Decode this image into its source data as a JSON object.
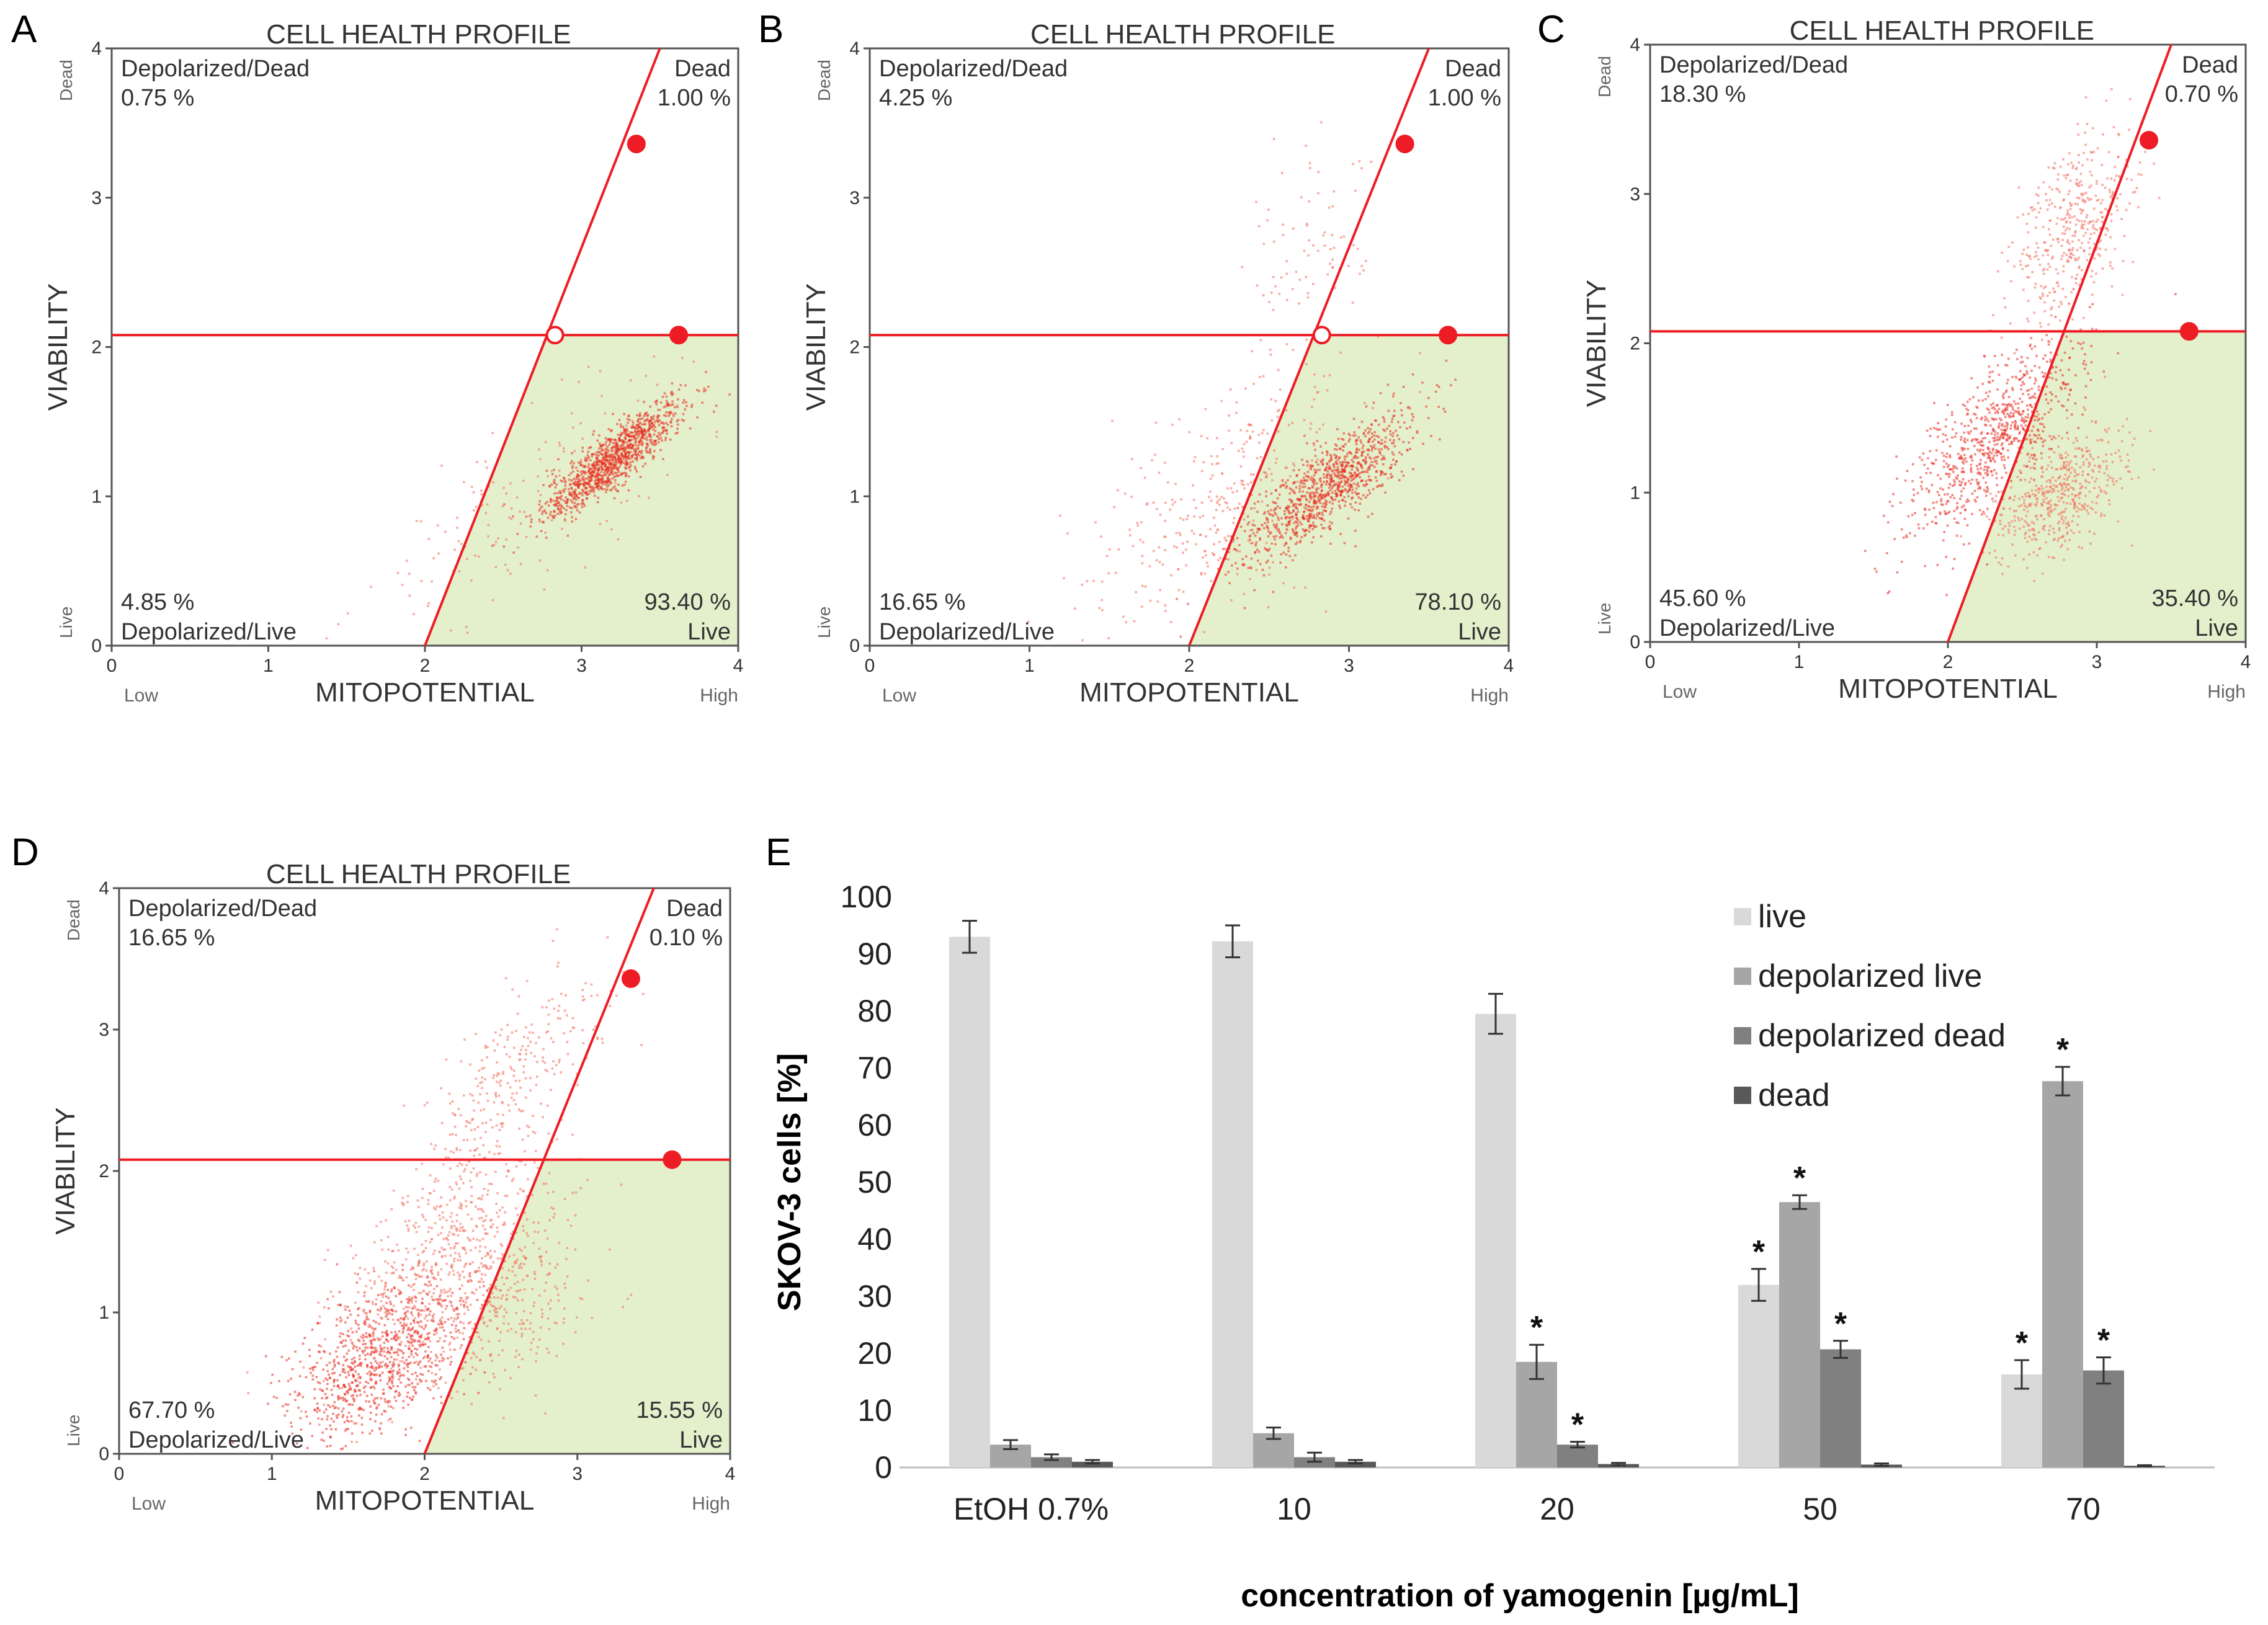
{
  "panel_letters": [
    "A",
    "B",
    "C",
    "D",
    "E"
  ],
  "chart_data": [
    {
      "type": "scatter",
      "panel": "A",
      "title": "CELL HEALTH PROFILE",
      "xlabel": "MITOPOTENTIAL",
      "ylabel": "VIABILITY",
      "x_low_label": "Low",
      "x_high_label": "High",
      "y_low_label": "Live",
      "y_high_label": "Dead",
      "xlim": [
        0,
        4
      ],
      "ylim": [
        0,
        4
      ],
      "xticks": [
        "0",
        "1",
        "2",
        "3",
        "4"
      ],
      "yticks": [
        "0",
        "1",
        "2",
        "3",
        "4"
      ],
      "horizontal_gate_y": 2.08,
      "diagonal_gate": [
        [
          2.0,
          0
        ],
        [
          3.5,
          4.0
        ]
      ],
      "markers": [
        {
          "x": 2.83,
          "y": 2.08,
          "style": "open"
        },
        {
          "x": 3.62,
          "y": 2.08,
          "style": "filled"
        },
        {
          "x": 3.35,
          "y": 3.36,
          "style": "filled"
        }
      ],
      "quadrants": {
        "depolarized_dead": {
          "label": "Depolarized/Dead",
          "value": "0.75 %"
        },
        "dead": {
          "label": "Dead",
          "value": "1.00 %"
        },
        "depolarized_live": {
          "label": "Depolarized/Live",
          "value": "4.85 %"
        },
        "live": {
          "label": "Live",
          "value": "93.40 %"
        }
      },
      "clusters": [
        {
          "cx": 3.2,
          "cy": 1.25,
          "sx": 0.22,
          "sy": 0.2,
          "corr": 0.88,
          "n": 1100,
          "dark": true
        },
        {
          "cx": 2.7,
          "cy": 1.0,
          "sx": 0.55,
          "sy": 0.45,
          "corr": 0.75,
          "n": 160,
          "dark": false
        }
      ]
    },
    {
      "type": "scatter",
      "panel": "B",
      "title": "CELL HEALTH PROFILE",
      "xlabel": "MITOPOTENTIAL",
      "ylabel": "VIABILITY",
      "x_low_label": "Low",
      "x_high_label": "High",
      "y_low_label": "Live",
      "y_high_label": "Dead",
      "xlim": [
        0,
        4
      ],
      "ylim": [
        0,
        4
      ],
      "xticks": [
        "0",
        "1",
        "2",
        "3",
        "4"
      ],
      "yticks": [
        "0",
        "1",
        "2",
        "3",
        "4"
      ],
      "horizontal_gate_y": 2.08,
      "diagonal_gate": [
        [
          2.0,
          0
        ],
        [
          3.5,
          4.0
        ]
      ],
      "markers": [
        {
          "x": 2.83,
          "y": 2.08,
          "style": "open"
        },
        {
          "x": 3.62,
          "y": 2.08,
          "style": "filled"
        },
        {
          "x": 3.35,
          "y": 3.36,
          "style": "filled"
        }
      ],
      "quadrants": {
        "depolarized_dead": {
          "label": "Depolarized/Dead",
          "value": "4.25 %"
        },
        "dead": {
          "label": "Dead",
          "value": "1.00 %"
        },
        "depolarized_live": {
          "label": "Depolarized/Live",
          "value": "16.65 %"
        },
        "live": {
          "label": "Live",
          "value": "78.10 %"
        }
      },
      "clusters": [
        {
          "cx": 2.85,
          "cy": 1.05,
          "sx": 0.28,
          "sy": 0.25,
          "corr": 0.82,
          "n": 1000,
          "dark": true
        },
        {
          "cx": 2.2,
          "cy": 0.95,
          "sx": 0.45,
          "sy": 0.45,
          "corr": 0.6,
          "n": 330,
          "dark": false
        },
        {
          "cx": 2.7,
          "cy": 2.6,
          "sx": 0.2,
          "sy": 0.4,
          "corr": 0.3,
          "n": 90,
          "dark": false
        }
      ]
    },
    {
      "type": "scatter",
      "panel": "C",
      "title": "CELL HEALTH PROFILE",
      "xlabel": "MITOPOTENTIAL",
      "ylabel": "VIABILITY",
      "x_low_label": "Low",
      "x_high_label": "High",
      "y_low_label": "Live",
      "y_high_label": "Dead",
      "xlim": [
        0,
        4
      ],
      "ylim": [
        0,
        4
      ],
      "xticks": [
        "0",
        "1",
        "2",
        "3",
        "4"
      ],
      "yticks": [
        "0",
        "1",
        "2",
        "3",
        "4"
      ],
      "horizontal_gate_y": 2.08,
      "diagonal_gate": [
        [
          2.0,
          0
        ],
        [
          3.5,
          4.0
        ]
      ],
      "markers": [
        {
          "x": 3.62,
          "y": 2.08,
          "style": "filled"
        },
        {
          "x": 3.35,
          "y": 3.36,
          "style": "filled"
        }
      ],
      "quadrants": {
        "depolarized_dead": {
          "label": "Depolarized/Dead",
          "value": "18.30 %"
        },
        "dead": {
          "label": "Dead",
          "value": "0.70 %"
        },
        "depolarized_live": {
          "label": "Depolarized/Live",
          "value": "45.60 %"
        },
        "live": {
          "label": "Live",
          "value": "35.40 %"
        }
      },
      "clusters": [
        {
          "cx": 2.3,
          "cy": 1.35,
          "sx": 0.3,
          "sy": 0.35,
          "corr": 0.75,
          "n": 800,
          "dark": true
        },
        {
          "cx": 2.75,
          "cy": 1.0,
          "sx": 0.22,
          "sy": 0.22,
          "corr": 0.5,
          "n": 500,
          "dark": false
        },
        {
          "cx": 2.85,
          "cy": 2.75,
          "sx": 0.2,
          "sy": 0.35,
          "corr": 0.5,
          "n": 430,
          "dark": false
        }
      ]
    },
    {
      "type": "scatter",
      "panel": "D",
      "title": "CELL HEALTH PROFILE",
      "xlabel": "MITOPOTENTIAL",
      "ylabel": "VIABILITY",
      "x_low_label": "Low",
      "x_high_label": "High",
      "y_low_label": "Live",
      "y_high_label": "Dead",
      "xlim": [
        0,
        4
      ],
      "ylim": [
        0,
        4
      ],
      "xticks": [
        "0",
        "1",
        "2",
        "3",
        "4"
      ],
      "yticks": [
        "0",
        "1",
        "2",
        "3",
        "4"
      ],
      "horizontal_gate_y": 2.08,
      "diagonal_gate": [
        [
          2.0,
          0
        ],
        [
          3.5,
          4.0
        ]
      ],
      "markers": [
        {
          "x": 3.62,
          "y": 2.08,
          "style": "filled"
        },
        {
          "x": 3.35,
          "y": 3.36,
          "style": "filled"
        }
      ],
      "quadrants": {
        "depolarized_dead": {
          "label": "Depolarized/Dead",
          "value": "16.65 %"
        },
        "dead": {
          "label": "Dead",
          "value": "0.10 %"
        },
        "depolarized_live": {
          "label": "Depolarized/Live",
          "value": "67.70 %"
        },
        "live": {
          "label": "Live",
          "value": "15.55 %"
        }
      },
      "clusters": [
        {
          "cx": 1.7,
          "cy": 0.65,
          "sx": 0.3,
          "sy": 0.3,
          "corr": 0.5,
          "n": 900,
          "dark": true
        },
        {
          "cx": 2.1,
          "cy": 1.3,
          "sx": 0.35,
          "sy": 0.45,
          "corr": 0.6,
          "n": 600,
          "dark": false
        },
        {
          "cx": 2.55,
          "cy": 2.6,
          "sx": 0.3,
          "sy": 0.45,
          "corr": 0.75,
          "n": 300,
          "dark": false
        },
        {
          "cx": 2.6,
          "cy": 1.1,
          "sx": 0.25,
          "sy": 0.3,
          "corr": 0.3,
          "n": 250,
          "dark": false
        }
      ]
    },
    {
      "type": "bar",
      "panel": "E",
      "ylabel": "SKOV-3 cells [%]",
      "xlabel": "concentration of yamogenin [µg/mL]",
      "ylim": [
        0,
        100
      ],
      "yticks": [
        0,
        10,
        20,
        30,
        40,
        50,
        60,
        70,
        80,
        90,
        100
      ],
      "categories": [
        "EtOH 0.7%",
        "10",
        "20",
        "50",
        "70"
      ],
      "series": [
        {
          "name": "live",
          "color": "#d9d9d9",
          "values": [
            93,
            92.2,
            79.5,
            32,
            16.3
          ],
          "errors": [
            2.8,
            2.8,
            3.5,
            2.8,
            2.5
          ],
          "significant": [
            false,
            false,
            false,
            true,
            true
          ]
        },
        {
          "name": "depolarized live",
          "color": "#a6a6a6",
          "values": [
            4,
            6,
            18.5,
            46.5,
            67.7
          ],
          "errors": [
            0.8,
            1.0,
            3.0,
            1.2,
            2.5
          ],
          "significant": [
            false,
            false,
            true,
            true,
            true
          ]
        },
        {
          "name": "depolarized dead",
          "color": "#808080",
          "values": [
            1.8,
            1.8,
            4,
            20.7,
            17
          ],
          "errors": [
            0.5,
            0.8,
            0.5,
            1.5,
            2.3
          ],
          "significant": [
            false,
            false,
            true,
            true,
            true
          ]
        },
        {
          "name": "dead",
          "color": "#595959",
          "values": [
            1,
            1,
            0.6,
            0.5,
            0.3
          ],
          "errors": [
            0.3,
            0.3,
            0.2,
            0.2,
            0.1
          ],
          "significant": [
            false,
            false,
            false,
            false,
            false
          ]
        }
      ],
      "significance_marker": "*",
      "legend_position": "top-right"
    }
  ]
}
